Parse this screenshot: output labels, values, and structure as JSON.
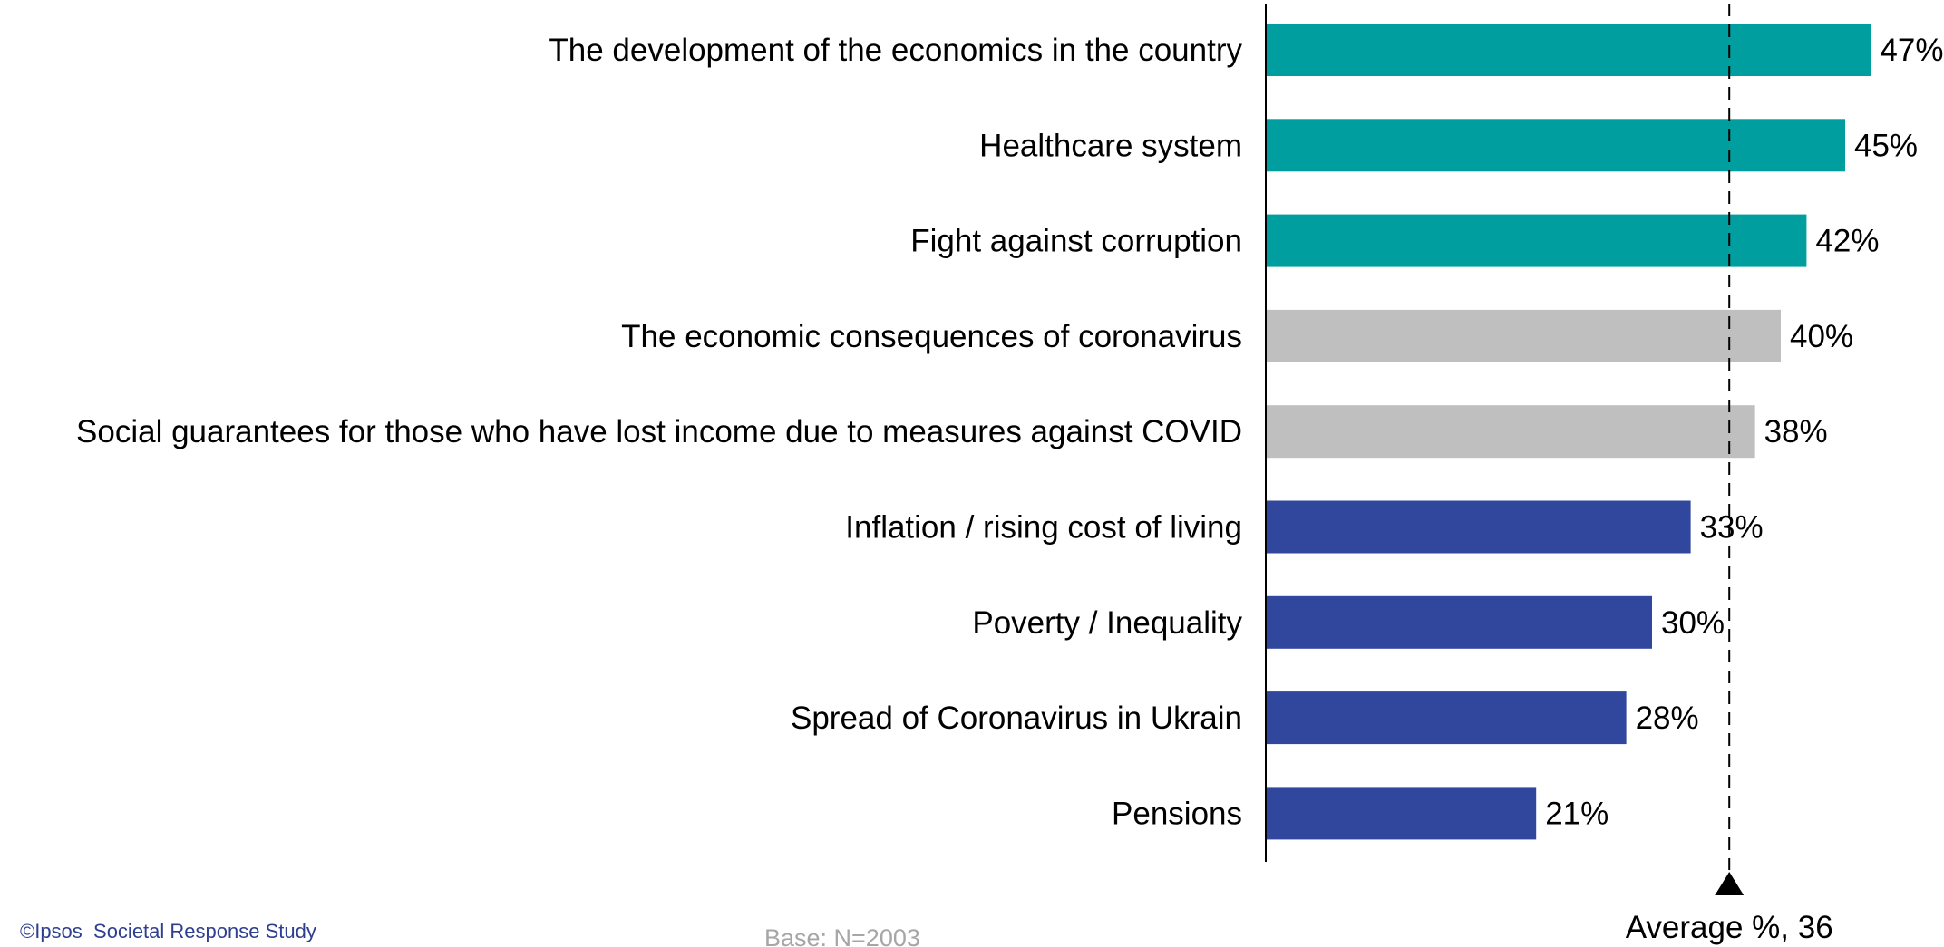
{
  "chart_data": {
    "type": "bar",
    "orientation": "horizontal",
    "title": "",
    "xlabel": "",
    "ylabel": "",
    "unit": "%",
    "xlim": [
      0,
      50
    ],
    "grid": false,
    "categories": [
      "The development of the economics in the country",
      "Healthcare system",
      "Fight against corruption",
      "The economic consequences of coronavirus",
      "Social guarantees for those who have lost income due to measures against COVID",
      "Inflation / rising cost of living",
      "Poverty / Inequality",
      "Spread of Coronavirus in Ukrain",
      "Pensions"
    ],
    "values": [
      47,
      45,
      42,
      40,
      38,
      33,
      30,
      28,
      21
    ],
    "value_labels": [
      "47%",
      "45%",
      "42%",
      "40%",
      "38%",
      "33%",
      "30%",
      "28%",
      "21%"
    ],
    "bar_colors": [
      "#009e9e",
      "#009e9e",
      "#009e9e",
      "#bfbfbf",
      "#bfbfbf",
      "#31479d",
      "#31479d",
      "#31479d",
      "#31479d"
    ],
    "average": {
      "value": 36,
      "label": "Average %,  36",
      "line_style": "dashed"
    }
  },
  "footer": {
    "source": "©Ipsos  Societal Response Study",
    "base": "Base: N=2003"
  },
  "colors": {
    "teal": "#009e9e",
    "grey": "#bfbfbf",
    "blue": "#31479d",
    "source_text": "#2e3f8f",
    "base_text": "#a6a6a6"
  }
}
